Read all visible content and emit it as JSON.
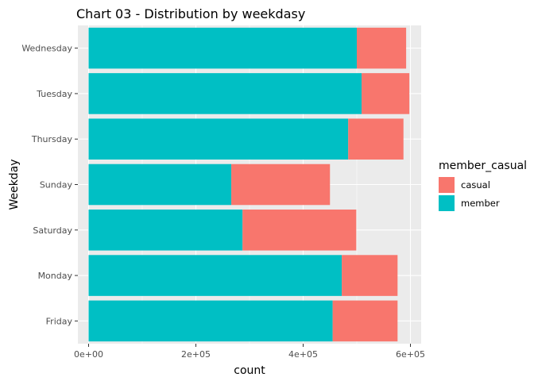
{
  "chart_data": {
    "type": "bar",
    "orientation": "horizontal",
    "stacked": true,
    "title": "Chart 03 - Distribution by weekdasy",
    "xlabel": "count",
    "ylabel": "Weekday",
    "categories": [
      "Friday",
      "Monday",
      "Saturday",
      "Sunday",
      "Thursday",
      "Tuesday",
      "Wednesday"
    ],
    "series": [
      {
        "name": "member",
        "color": "#00BFC4",
        "values": [
          455000,
          472000,
          287000,
          266000,
          484000,
          509000,
          500000
        ]
      },
      {
        "name": "casual",
        "color": "#F8766D",
        "values": [
          121000,
          104000,
          212000,
          184000,
          103000,
          89000,
          92000
        ]
      }
    ],
    "xlim": [
      -20000,
      620000
    ],
    "xticks": [
      0,
      200000,
      400000,
      600000
    ],
    "xtick_labels": [
      "0e+00",
      "2e+05",
      "4e+05",
      "6e+05"
    ],
    "grid": true,
    "background": "#EBEBEB",
    "legend": {
      "title": "member_casual",
      "position": "right",
      "items": [
        {
          "label": "casual",
          "color": "#F8766D"
        },
        {
          "label": "member",
          "color": "#00BFC4"
        }
      ]
    }
  }
}
